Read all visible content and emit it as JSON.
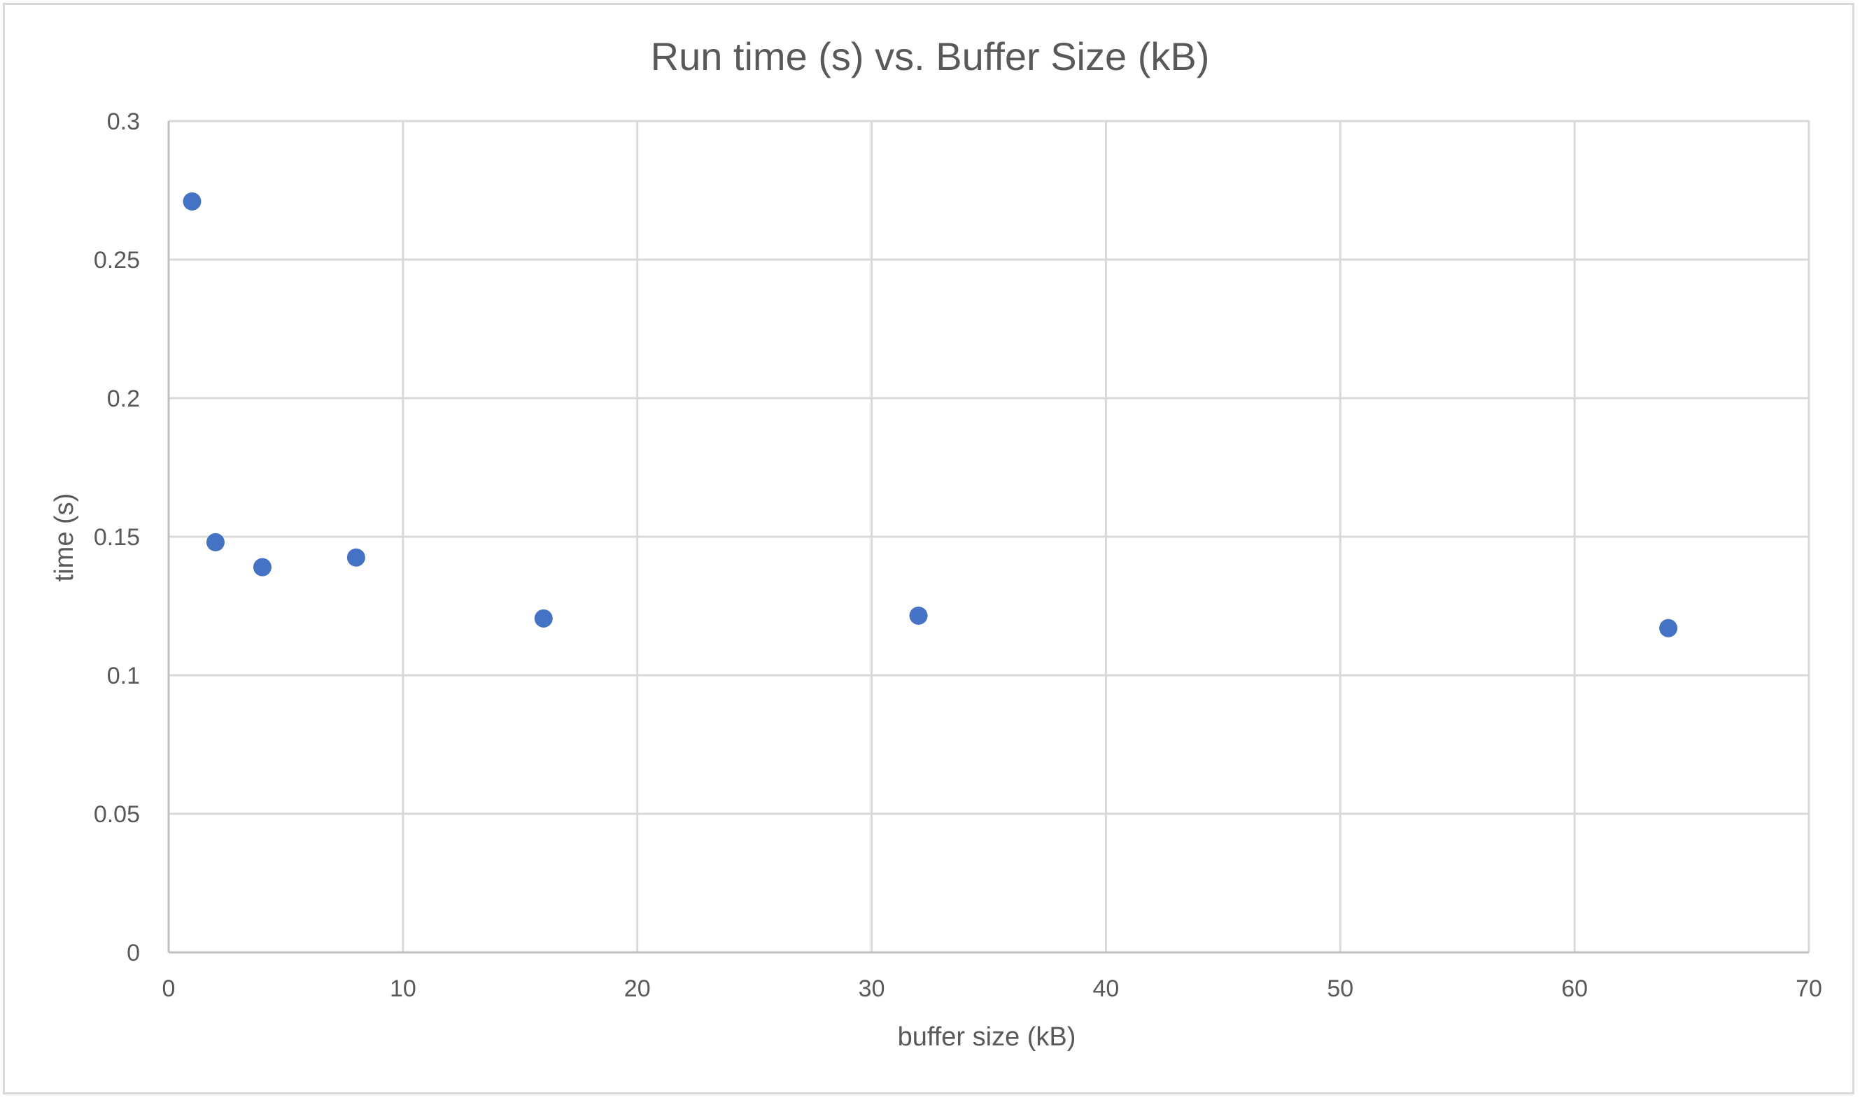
{
  "chart_data": {
    "type": "scatter",
    "title": "Run time (s) vs. Buffer Size (kB)",
    "xlabel": "buffer size (kB)",
    "ylabel": "time (s)",
    "xlim": [
      0,
      70
    ],
    "ylim": [
      0,
      0.3
    ],
    "x_ticks": [
      "0",
      "10",
      "20",
      "30",
      "40",
      "50",
      "60",
      "70"
    ],
    "y_ticks": [
      "0",
      "0.05",
      "0.1",
      "0.15",
      "0.2",
      "0.25",
      "0.3"
    ],
    "grid": true,
    "legend": "none",
    "marker_color": "#4472c4",
    "series": [
      {
        "x": [
          1,
          2,
          4,
          8,
          16,
          32,
          64
        ],
        "y": [
          0.271,
          0.148,
          0.139,
          0.1425,
          0.1205,
          0.1215,
          0.117
        ]
      }
    ]
  }
}
